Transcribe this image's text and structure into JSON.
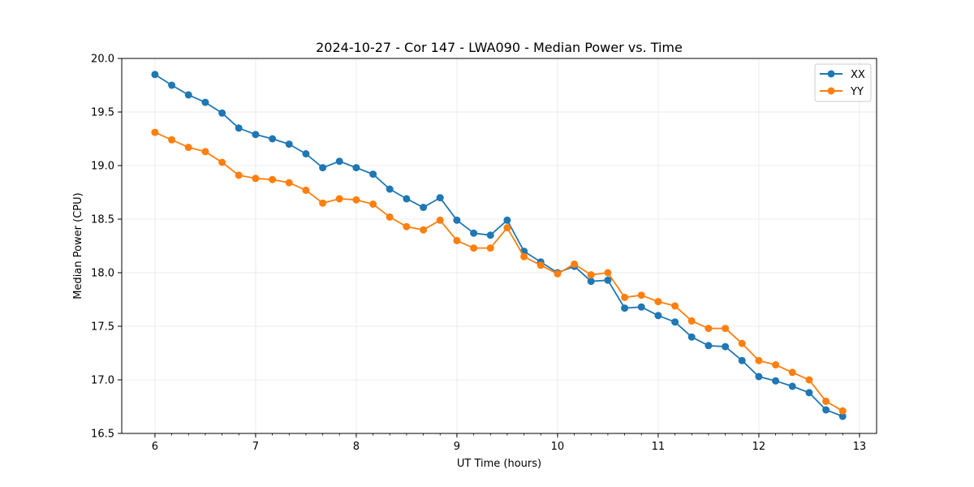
{
  "chart_data": {
    "type": "line",
    "title": "2024-10-27 - Cor 147 - LWA090 - Median Power vs. Time",
    "xlabel": "UT Time (hours)",
    "ylabel": "Median Power (CPU)",
    "xlim": [
      5.67,
      13.17
    ],
    "ylim": [
      16.5,
      20.0
    ],
    "xticks": [
      6,
      7,
      8,
      9,
      10,
      11,
      12,
      13
    ],
    "xtick_labels": [
      "6",
      "7",
      "8",
      "9",
      "10",
      "11",
      "12",
      "13"
    ],
    "yticks": [
      16.5,
      17.0,
      17.5,
      18.0,
      18.5,
      19.0,
      19.5,
      20.0
    ],
    "ytick_labels": [
      "16.5",
      "17.0",
      "17.5",
      "18.0",
      "18.5",
      "19.0",
      "19.5",
      "20.0"
    ],
    "grid": true,
    "legend_position": "top-right",
    "x": [
      6.0,
      6.167,
      6.333,
      6.5,
      6.667,
      6.833,
      7.0,
      7.167,
      7.333,
      7.5,
      7.667,
      7.833,
      8.0,
      8.167,
      8.333,
      8.5,
      8.667,
      8.833,
      9.0,
      9.167,
      9.333,
      9.5,
      9.667,
      9.833,
      10.0,
      10.167,
      10.333,
      10.5,
      10.667,
      10.833,
      11.0,
      11.167,
      11.333,
      11.5,
      11.667,
      11.833,
      12.0,
      12.167,
      12.333,
      12.5,
      12.667,
      12.833
    ],
    "series": [
      {
        "name": "XX",
        "color": "#1f77b4",
        "values": [
          19.85,
          19.75,
          19.66,
          19.59,
          19.49,
          19.35,
          19.29,
          19.25,
          19.2,
          19.11,
          18.98,
          19.04,
          18.98,
          18.92,
          18.78,
          18.69,
          18.61,
          18.7,
          18.49,
          18.37,
          18.35,
          18.49,
          18.2,
          18.1,
          18.0,
          18.06,
          17.92,
          17.93,
          17.67,
          17.68,
          17.6,
          17.54,
          17.4,
          17.32,
          17.31,
          17.18,
          17.03,
          16.99,
          16.94,
          16.88,
          16.72,
          16.66
        ]
      },
      {
        "name": "YY",
        "color": "#ff7f0e",
        "values": [
          19.31,
          19.24,
          19.17,
          19.13,
          19.03,
          18.91,
          18.88,
          18.87,
          18.84,
          18.77,
          18.65,
          18.69,
          18.68,
          18.64,
          18.52,
          18.43,
          18.4,
          18.49,
          18.3,
          18.23,
          18.23,
          18.42,
          18.15,
          18.07,
          17.99,
          18.08,
          17.98,
          18.0,
          17.77,
          17.79,
          17.73,
          17.69,
          17.55,
          17.48,
          17.48,
          17.34,
          17.18,
          17.14,
          17.07,
          17.0,
          16.8,
          16.71
        ]
      }
    ]
  }
}
